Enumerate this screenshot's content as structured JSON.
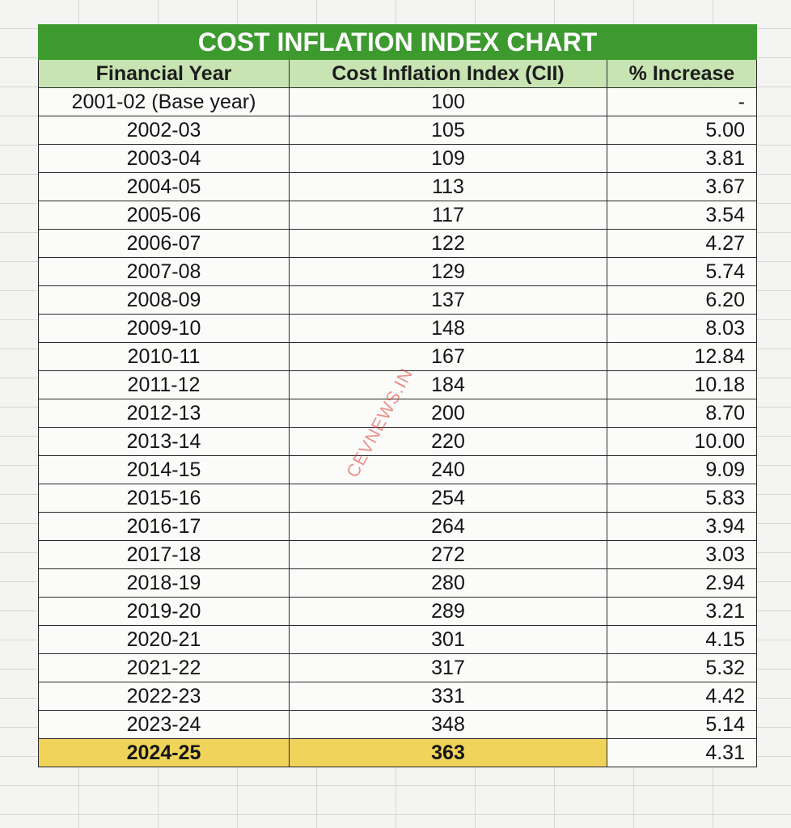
{
  "table": {
    "title": "COST INFLATION INDEX CHART",
    "columns": [
      "Financial Year",
      "Cost Inflation Index (CII)",
      "% Increase"
    ],
    "rows": [
      [
        "2001-02 (Base year)",
        "100",
        "-"
      ],
      [
        "2002-03",
        "105",
        "5.00"
      ],
      [
        "2003-04",
        "109",
        "3.81"
      ],
      [
        "2004-05",
        "113",
        "3.67"
      ],
      [
        "2005-06",
        "117",
        "3.54"
      ],
      [
        "2006-07",
        "122",
        "4.27"
      ],
      [
        "2007-08",
        "129",
        "5.74"
      ],
      [
        "2008-09",
        "137",
        "6.20"
      ],
      [
        "2009-10",
        "148",
        "8.03"
      ],
      [
        "2010-11",
        "167",
        "12.84"
      ],
      [
        "2011-12",
        "184",
        "10.18"
      ],
      [
        "2012-13",
        "200",
        "8.70"
      ],
      [
        "2013-14",
        "220",
        "10.00"
      ],
      [
        "2014-15",
        "240",
        "9.09"
      ],
      [
        "2015-16",
        "254",
        "5.83"
      ],
      [
        "2016-17",
        "264",
        "3.94"
      ],
      [
        "2017-18",
        "272",
        "3.03"
      ],
      [
        "2018-19",
        "280",
        "2.94"
      ],
      [
        "2019-20",
        "289",
        "3.21"
      ],
      [
        "2020-21",
        "301",
        "4.15"
      ],
      [
        "2021-22",
        "317",
        "5.32"
      ],
      [
        "2022-23",
        "331",
        "4.42"
      ],
      [
        "2023-24",
        "348",
        "5.14"
      ],
      [
        "2024-25",
        "363",
        "4.31"
      ]
    ]
  },
  "watermark": "CEVNEWS.IN"
}
